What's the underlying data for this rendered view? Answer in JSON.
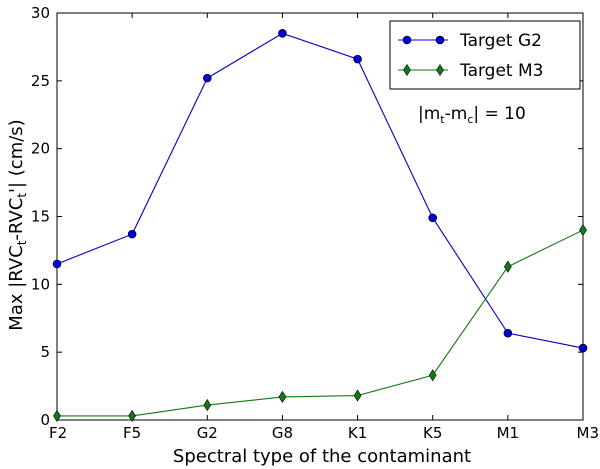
{
  "chart_data": {
    "type": "line",
    "title": "",
    "xlabel": "Spectral type of the contaminant",
    "ylabel_parts": {
      "pre": "Max |RVC",
      "sub1": "t",
      "mid": "-RVC",
      "sub2": "t",
      "post": "'| (cm/s)"
    },
    "categories": [
      "F2",
      "F5",
      "G2",
      "G8",
      "K1",
      "K5",
      "M1",
      "M3"
    ],
    "y_ticks": [
      "0",
      "5",
      "10",
      "15",
      "20",
      "25",
      "30"
    ],
    "ylim": [
      0,
      30
    ],
    "grid": false,
    "legend_position": "top-right",
    "series": [
      {
        "name": "Target G2",
        "color": "#0000cc",
        "marker": "circle",
        "values": [
          11.5,
          13.7,
          25.2,
          28.5,
          26.6,
          14.9,
          6.4,
          5.3
        ]
      },
      {
        "name": "Target M3",
        "color": "#137a13",
        "marker": "diamond",
        "values": [
          0.3,
          0.3,
          1.1,
          1.7,
          1.8,
          3.3,
          11.3,
          14.0
        ]
      }
    ],
    "annotation": {
      "pre": "|m",
      "sub1": "t",
      "mid": "-m",
      "sub2": "c",
      "post": "| = 10"
    }
  }
}
